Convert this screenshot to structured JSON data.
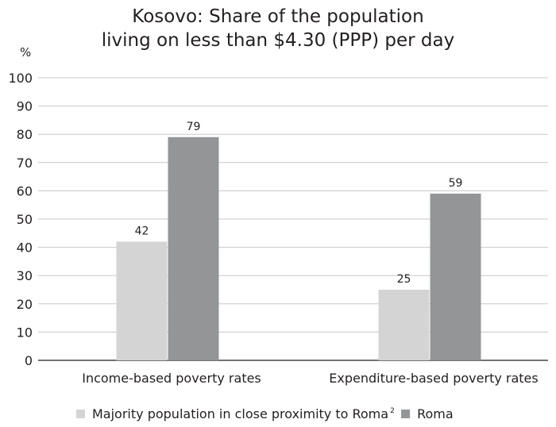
{
  "chart_data": {
    "type": "bar",
    "title_lines": [
      "Kosovo: Share of the population",
      "living on less than $4.30 (PPP) per day"
    ],
    "ylabel": "%",
    "ylim": [
      0,
      100
    ],
    "yticks": [
      0,
      10,
      20,
      30,
      40,
      50,
      60,
      70,
      80,
      90,
      100
    ],
    "grid": true,
    "categories": [
      "Income-based poverty rates",
      "Expenditure-based poverty rates"
    ],
    "series": [
      {
        "name": "Majority population in close proximity to Roma",
        "footnote": "2",
        "values": [
          42,
          25
        ],
        "color": "#d4d4d5"
      },
      {
        "name": "Roma",
        "values": [
          79,
          59
        ],
        "color": "#939597"
      }
    ],
    "legend_position": "bottom"
  }
}
